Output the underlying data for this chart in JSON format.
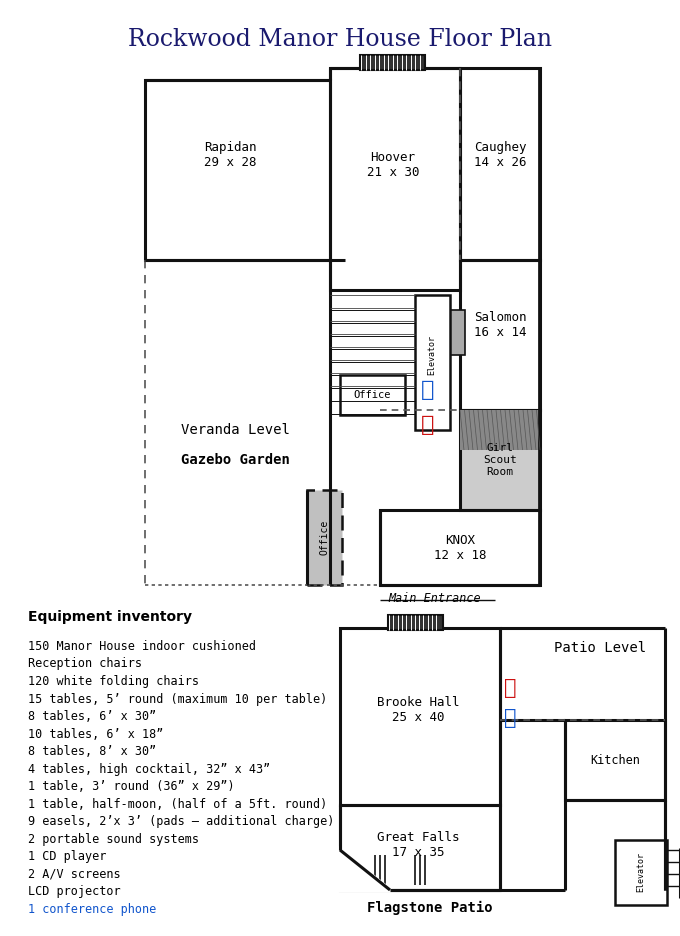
{
  "title": "Rockwood Manor House Floor Plan",
  "colors": {
    "wall": "#111111",
    "dashed": "#555555",
    "gray_fill": "#bbbbbb",
    "dark_hatch": "#777777",
    "title_color": "#1a1a6e",
    "blue_text": "#1155cc",
    "red_text": "#cc1111"
  },
  "equipment_lines": [
    [
      "150 Manor House indoor cushioned",
      "black"
    ],
    [
      "Reception chairs",
      "black"
    ],
    [
      "120 white folding chairs",
      "black"
    ],
    [
      "15 tables, 5’ round (maximum 10 per table)",
      "black"
    ],
    [
      "8 tables, 6’ x 30”",
      "black"
    ],
    [
      "10 tables, 6’ x 18”",
      "black"
    ],
    [
      "8 tables, 8’ x 30”",
      "black"
    ],
    [
      "4 tables, high cocktail, 32” x 43”",
      "black"
    ],
    [
      "1 table, 3’ round (36” x 29”)",
      "black"
    ],
    [
      "1 table, half-moon, (half of a 5ft. round)",
      "black"
    ],
    [
      "9 easels, 2’x 3’ (pads – additional charge)",
      "black"
    ],
    [
      "2 portable sound systems",
      "black"
    ],
    [
      "1 CD player",
      "black"
    ],
    [
      "2 A/V screens",
      "black"
    ],
    [
      "LCD projector",
      "black"
    ],
    [
      "1 conference phone",
      "blue"
    ]
  ]
}
